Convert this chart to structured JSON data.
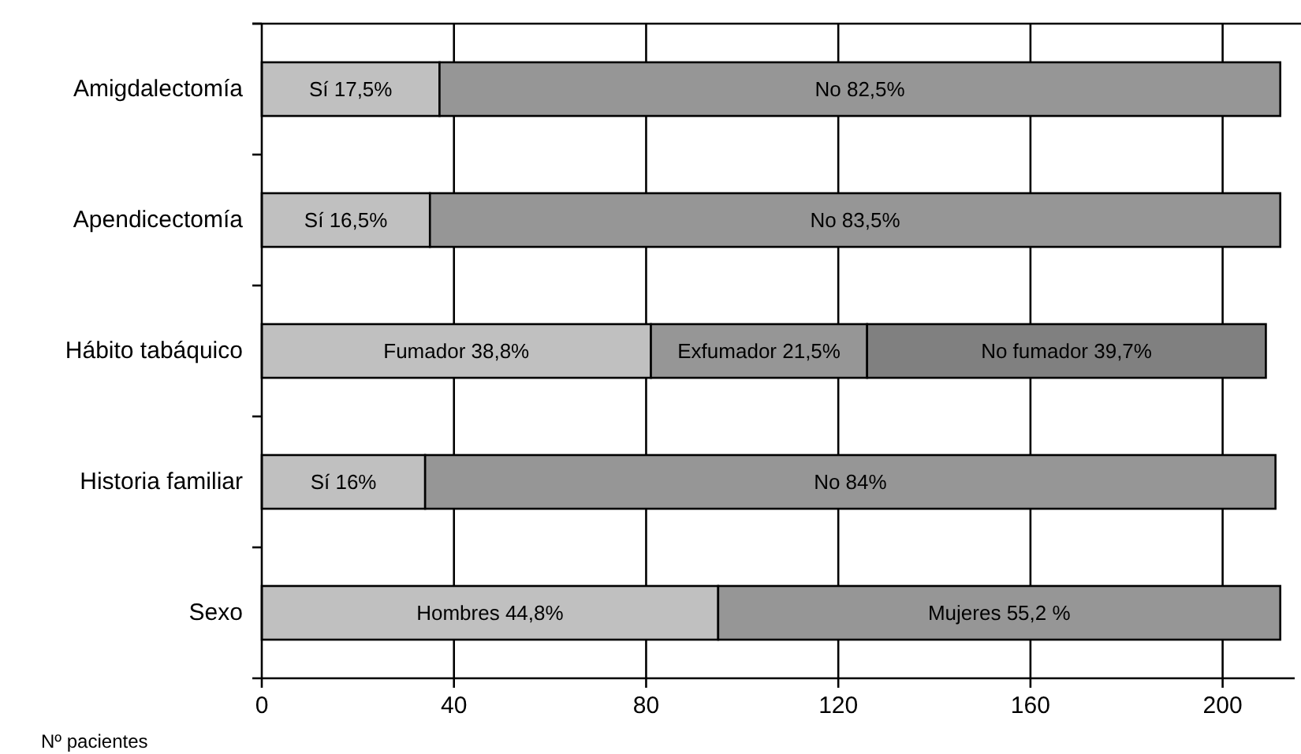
{
  "chart_data": {
    "type": "bar",
    "orientation": "horizontal",
    "stacked": true,
    "xlabel": "Nº pacientes",
    "categories": [
      "Amigdalectomía",
      "Apendicectomía",
      "Hábito tabáquico",
      "Historia familiar",
      "Sexo"
    ],
    "series": [
      {
        "color": "#c0c0c0",
        "values": [
          37,
          35,
          81,
          34,
          95
        ],
        "value_labels": [
          "Sí 17,5%",
          "Sí 16,5%",
          "Fumador 38,8%",
          "Sí 16%",
          "Hombres 44,8%"
        ]
      },
      {
        "color": "#969696",
        "values": [
          175,
          177,
          45,
          177,
          117
        ],
        "value_labels": [
          "No 82,5%",
          "No 83,5%",
          "Exfumador 21,5%",
          "No 84%",
          "Mujeres 55,2 %"
        ]
      },
      {
        "color": "#808080",
        "values": [
          null,
          null,
          83,
          null,
          null
        ],
        "value_labels": [
          null,
          null,
          "No fumador 39,7%",
          null,
          null
        ]
      }
    ],
    "xlim": [
      0,
      215
    ],
    "xticks": [
      0,
      40,
      80,
      120,
      160,
      200
    ],
    "grid": "x"
  }
}
